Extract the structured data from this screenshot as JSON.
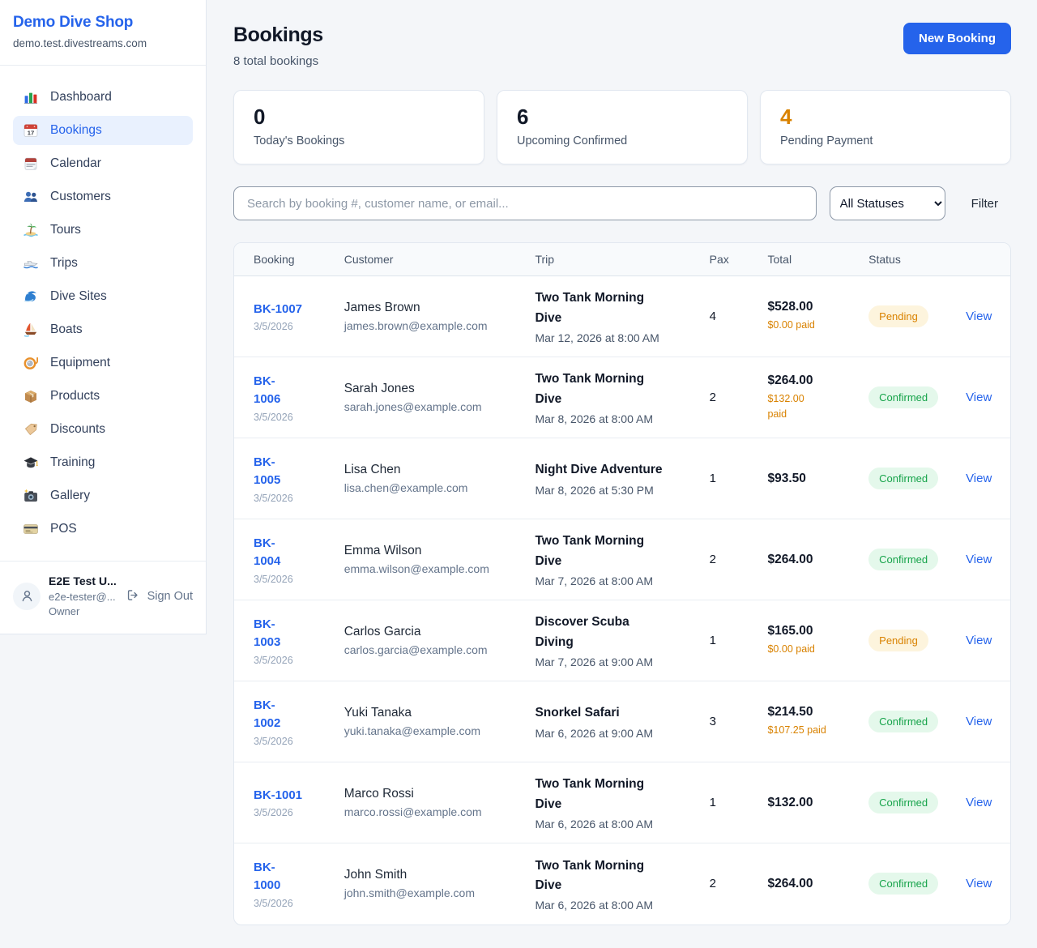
{
  "app": {
    "name": "Demo Dive Shop",
    "domain": "demo.test.divestreams.com"
  },
  "colors": {
    "accent": "#2563eb",
    "pending": "#d98200",
    "confirmed": "#16a34a"
  },
  "sidebar": {
    "items": [
      {
        "label": "Dashboard",
        "icon": "dashboard-icon",
        "active": false
      },
      {
        "label": "Bookings",
        "icon": "bookings-calendar-icon",
        "active": true
      },
      {
        "label": "Calendar",
        "icon": "calendar-icon",
        "active": false
      },
      {
        "label": "Customers",
        "icon": "customers-icon",
        "active": false
      },
      {
        "label": "Tours",
        "icon": "tours-island-icon",
        "active": false
      },
      {
        "label": "Trips",
        "icon": "trips-boat-icon",
        "active": false
      },
      {
        "label": "Dive Sites",
        "icon": "dive-sites-wave-icon",
        "active": false
      },
      {
        "label": "Boats",
        "icon": "boats-sailboat-icon",
        "active": false
      },
      {
        "label": "Equipment",
        "icon": "equipment-mask-icon",
        "active": false
      },
      {
        "label": "Products",
        "icon": "products-box-icon",
        "active": false
      },
      {
        "label": "Discounts",
        "icon": "discounts-tag-icon",
        "active": false
      },
      {
        "label": "Training",
        "icon": "training-cap-icon",
        "active": false
      },
      {
        "label": "Gallery",
        "icon": "gallery-camera-icon",
        "active": false
      },
      {
        "label": "POS",
        "icon": "pos-card-icon",
        "active": false
      }
    ],
    "user": {
      "name": "E2E Test U...",
      "email": "e2e-tester@...",
      "role": "Owner",
      "sign_out_label": "Sign Out"
    }
  },
  "header": {
    "title": "Bookings",
    "subtitle": "8 total bookings",
    "new_booking_label": "New Booking"
  },
  "stats": [
    {
      "value": "0",
      "label": "Today's Bookings"
    },
    {
      "value": "6",
      "label": "Upcoming Confirmed"
    },
    {
      "value": "4",
      "label": "Pending Payment"
    }
  ],
  "filters": {
    "search_placeholder": "Search by booking #, customer name, or email...",
    "status_selected": "All Statuses",
    "filter_label": "Filter"
  },
  "table": {
    "columns": [
      "Booking",
      "Customer",
      "Trip",
      "Pax",
      "Total",
      "Status",
      ""
    ],
    "view_label": "View",
    "rows": [
      {
        "id": "BK-1007",
        "id_two_lines": false,
        "date": "3/5/2026",
        "customer": "James Brown",
        "email": "james.brown@example.com",
        "trip": "Two Tank Morning Dive",
        "trip_two_lines": true,
        "trip_datetime": "Mar 12, 2026 at 8:00 AM",
        "pax": "4",
        "total": "$528.00",
        "paid": "$0.00 paid",
        "paid_two_lines": false,
        "status": "Pending"
      },
      {
        "id": "BK-1006",
        "id_two_lines": true,
        "date": "3/5/2026",
        "customer": "Sarah Jones",
        "email": "sarah.jones@example.com",
        "trip": "Two Tank Morning Dive",
        "trip_two_lines": true,
        "trip_datetime": "Mar 8, 2026 at 8:00 AM",
        "pax": "2",
        "total": "$264.00",
        "paid": "$132.00 paid",
        "paid_two_lines": true,
        "status": "Confirmed"
      },
      {
        "id": "BK-1005",
        "id_two_lines": true,
        "date": "3/5/2026",
        "customer": "Lisa Chen",
        "email": "lisa.chen@example.com",
        "trip": "Night Dive Adventure",
        "trip_two_lines": false,
        "trip_datetime": "Mar 8, 2026 at 5:30 PM",
        "pax": "1",
        "total": "$93.50",
        "paid": null,
        "paid_two_lines": false,
        "status": "Confirmed"
      },
      {
        "id": "BK-1004",
        "id_two_lines": true,
        "date": "3/5/2026",
        "customer": "Emma Wilson",
        "email": "emma.wilson@example.com",
        "trip": "Two Tank Morning Dive",
        "trip_two_lines": true,
        "trip_datetime": "Mar 7, 2026 at 8:00 AM",
        "pax": "2",
        "total": "$264.00",
        "paid": null,
        "paid_two_lines": false,
        "status": "Confirmed"
      },
      {
        "id": "BK-1003",
        "id_two_lines": true,
        "date": "3/5/2026",
        "customer": "Carlos Garcia",
        "email": "carlos.garcia@example.com",
        "trip": "Discover Scuba Diving",
        "trip_two_lines": true,
        "trip_datetime": "Mar 7, 2026 at 9:00 AM",
        "pax": "1",
        "total": "$165.00",
        "paid": "$0.00 paid",
        "paid_two_lines": false,
        "status": "Pending"
      },
      {
        "id": "BK-1002",
        "id_two_lines": true,
        "date": "3/5/2026",
        "customer": "Yuki Tanaka",
        "email": "yuki.tanaka@example.com",
        "trip": "Snorkel Safari",
        "trip_two_lines": false,
        "trip_datetime": "Mar 6, 2026 at 9:00 AM",
        "pax": "3",
        "total": "$214.50",
        "paid": "$107.25 paid",
        "paid_two_lines": false,
        "status": "Confirmed"
      },
      {
        "id": "BK-1001",
        "id_two_lines": false,
        "date": "3/5/2026",
        "customer": "Marco Rossi",
        "email": "marco.rossi@example.com",
        "trip": "Two Tank Morning Dive",
        "trip_two_lines": true,
        "trip_datetime": "Mar 6, 2026 at 8:00 AM",
        "pax": "1",
        "total": "$132.00",
        "paid": null,
        "paid_two_lines": false,
        "status": "Confirmed"
      },
      {
        "id": "BK-1000",
        "id_two_lines": true,
        "date": "3/5/2026",
        "customer": "John Smith",
        "email": "john.smith@example.com",
        "trip": "Two Tank Morning Dive",
        "trip_two_lines": true,
        "trip_datetime": "Mar 6, 2026 at 8:00 AM",
        "pax": "2",
        "total": "$264.00",
        "paid": null,
        "paid_two_lines": false,
        "status": "Confirmed"
      }
    ]
  }
}
